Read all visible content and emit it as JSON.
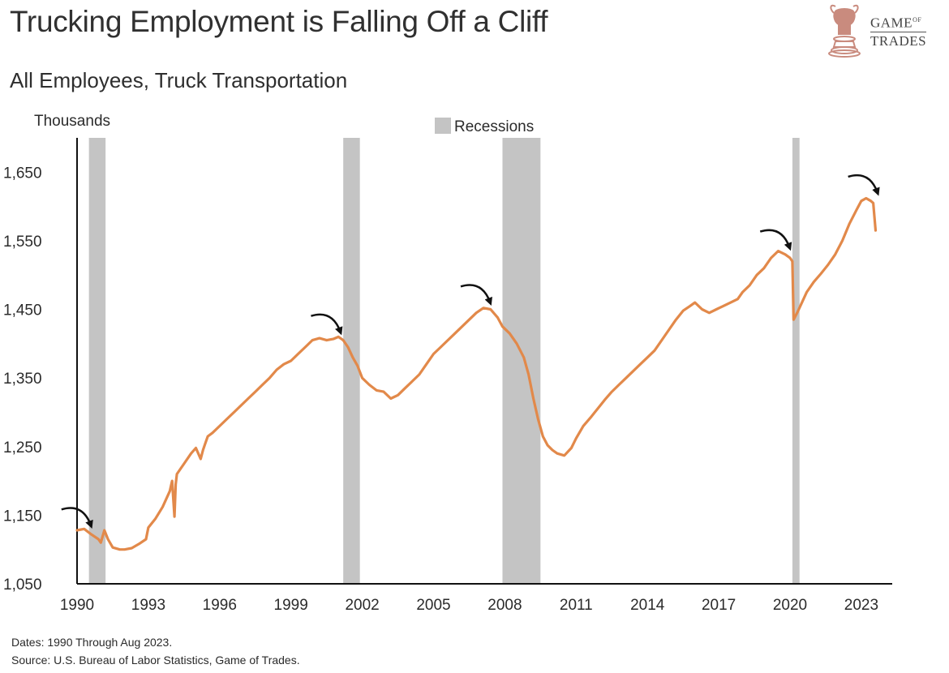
{
  "header": {
    "title": "Trucking Employment is Falling Off a Cliff",
    "subtitle": "All Employees, Truck Transportation"
  },
  "logo": {
    "line1": "GAME",
    "of": "OF",
    "line2": "TRADES",
    "icon": "bull-chess-knight-icon",
    "color": "#c98b7e"
  },
  "footer": {
    "dates": "Dates: 1990 Through Aug 2023.",
    "source": "Source: U.S. Bureau of Labor Statistics, Game of Trades."
  },
  "chart_data": {
    "type": "line",
    "ylabel": "Thousands",
    "xlabel": "",
    "ylim": [
      1050,
      1700
    ],
    "xlim": [
      1990,
      2024.3
    ],
    "yticks": [
      1050,
      1150,
      1250,
      1350,
      1450,
      1550,
      1650
    ],
    "ytick_labels": [
      "1,050",
      "1,150",
      "1,250",
      "1,350",
      "1,450",
      "1,550",
      "1,650"
    ],
    "xticks": [
      1990,
      1993,
      1996,
      1999,
      2002,
      2005,
      2008,
      2011,
      2014,
      2017,
      2020,
      2023
    ],
    "xtick_labels": [
      "1990",
      "1993",
      "1996",
      "1999",
      "2002",
      "2005",
      "2008",
      "2011",
      "2014",
      "2017",
      "2020",
      "2023"
    ],
    "line_color": "#e2894a",
    "recession_color": "#c4c4c4",
    "legend": {
      "label": "Recessions",
      "position": "top-center"
    },
    "recessions": [
      {
        "start": 1990.5,
        "end": 1991.2
      },
      {
        "start": 2001.2,
        "end": 2001.9
      },
      {
        "start": 2007.9,
        "end": 2009.5
      },
      {
        "start": 2020.1,
        "end": 2020.4
      }
    ],
    "series": [
      {
        "x": [
          1990.0,
          1990.3,
          1990.6,
          1990.9,
          1991.0,
          1991.15,
          1991.3,
          1991.5,
          1991.8,
          1992.0,
          1992.3,
          1992.6,
          1992.9,
          1993.0,
          1993.3,
          1993.6,
          1993.9,
          1994.0,
          1994.1,
          1994.15,
          1994.2,
          1994.5,
          1994.8,
          1995.0,
          1995.2,
          1995.3,
          1995.4,
          1995.5,
          1995.7,
          1996.0,
          1996.3,
          1996.6,
          1996.9,
          1997.2,
          1997.5,
          1997.8,
          1998.1,
          1998.4,
          1998.7,
          1999.0,
          1999.3,
          1999.6,
          1999.9,
          2000.2,
          2000.5,
          2000.8,
          2001.0,
          2001.2,
          2001.4,
          2001.6,
          2001.8,
          2002.0,
          2002.3,
          2002.6,
          2002.9,
          2003.2,
          2003.5,
          2003.8,
          2004.1,
          2004.4,
          2004.7,
          2005.0,
          2005.3,
          2005.6,
          2005.9,
          2006.2,
          2006.5,
          2006.8,
          2007.1,
          2007.4,
          2007.7,
          2007.9,
          2008.2,
          2008.5,
          2008.8,
          2009.0,
          2009.2,
          2009.4,
          2009.6,
          2009.8,
          2010.0,
          2010.2,
          2010.5,
          2010.8,
          2011.0,
          2011.3,
          2011.6,
          2011.9,
          2012.2,
          2012.5,
          2012.8,
          2013.1,
          2013.4,
          2013.7,
          2014.0,
          2014.3,
          2014.6,
          2014.9,
          2015.2,
          2015.5,
          2015.8,
          2016.0,
          2016.3,
          2016.6,
          2016.9,
          2017.2,
          2017.5,
          2017.8,
          2018.0,
          2018.3,
          2018.6,
          2018.9,
          2019.2,
          2019.5,
          2019.8,
          2020.0,
          2020.1,
          2020.15,
          2020.3,
          2020.5,
          2020.7,
          2021.0,
          2021.3,
          2021.6,
          2021.9,
          2022.2,
          2022.5,
          2022.8,
          2023.0,
          2023.2,
          2023.4,
          2023.5,
          2023.6
        ],
        "values": [
          1128,
          1130,
          1122,
          1115,
          1110,
          1128,
          1115,
          1103,
          1100,
          1100,
          1102,
          1108,
          1115,
          1132,
          1145,
          1162,
          1185,
          1200,
          1148,
          1195,
          1210,
          1225,
          1240,
          1248,
          1232,
          1245,
          1255,
          1265,
          1270,
          1280,
          1290,
          1300,
          1310,
          1320,
          1330,
          1340,
          1350,
          1362,
          1370,
          1375,
          1385,
          1395,
          1405,
          1408,
          1405,
          1407,
          1410,
          1405,
          1395,
          1380,
          1368,
          1350,
          1340,
          1332,
          1330,
          1320,
          1325,
          1335,
          1345,
          1355,
          1370,
          1385,
          1395,
          1405,
          1415,
          1425,
          1435,
          1445,
          1452,
          1450,
          1438,
          1425,
          1415,
          1400,
          1380,
          1355,
          1320,
          1290,
          1265,
          1252,
          1245,
          1240,
          1237,
          1248,
          1262,
          1280,
          1292,
          1305,
          1318,
          1330,
          1340,
          1350,
          1360,
          1370,
          1380,
          1390,
          1405,
          1420,
          1435,
          1448,
          1455,
          1460,
          1450,
          1445,
          1450,
          1455,
          1460,
          1465,
          1475,
          1485,
          1500,
          1510,
          1525,
          1535,
          1530,
          1525,
          1520,
          1435,
          1445,
          1460,
          1475,
          1490,
          1502,
          1515,
          1530,
          1550,
          1575,
          1595,
          1608,
          1612,
          1608,
          1605,
          1565
        ]
      }
    ]
  }
}
